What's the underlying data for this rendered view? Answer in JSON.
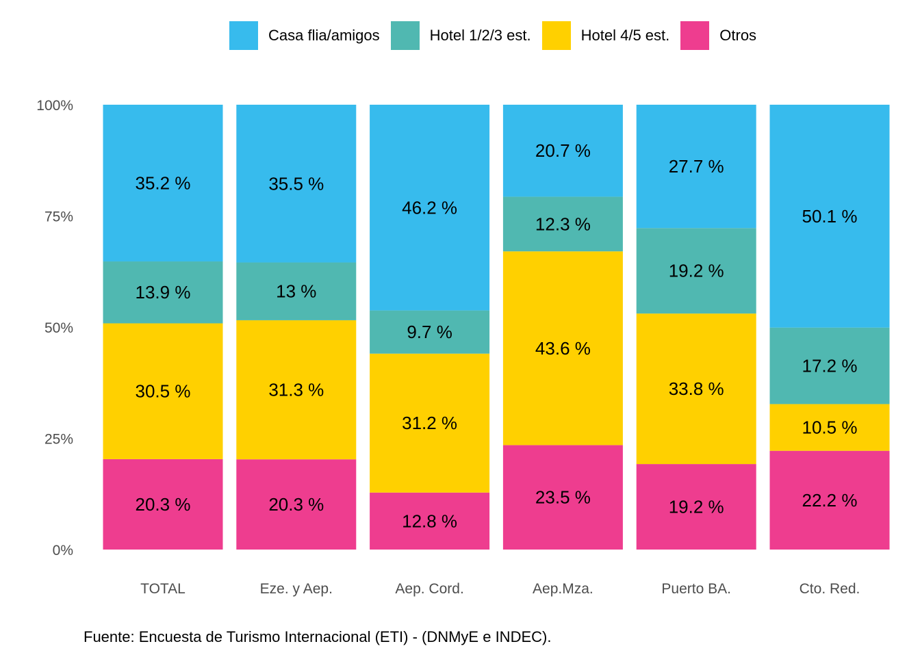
{
  "chart_data": {
    "type": "bar",
    "stacked": true,
    "normalized": true,
    "categories": [
      "TOTAL",
      "Eze. y Aep.",
      "Aep. Cord.",
      "Aep.Mza.",
      "Puerto BA.",
      "Cto. Red."
    ],
    "series": [
      {
        "name": "Otros",
        "color": "#EE3D8F",
        "values": [
          20.3,
          20.3,
          12.8,
          23.5,
          19.2,
          22.2
        ]
      },
      {
        "name": "Hotel 4/5 est.",
        "color": "#FFD000",
        "values": [
          30.5,
          31.3,
          31.2,
          43.6,
          33.8,
          10.5
        ]
      },
      {
        "name": "Hotel 1/2/3 est.",
        "color": "#50B8B1",
        "values": [
          13.9,
          13,
          9.7,
          12.3,
          19.2,
          17.2
        ]
      },
      {
        "name": "Casa flia/amigos",
        "color": "#37BBED",
        "values": [
          35.2,
          35.5,
          46.2,
          20.7,
          27.7,
          50.1
        ]
      }
    ],
    "legend_order": [
      "Casa flia/amigos",
      "Hotel 1/2/3 est.",
      "Hotel 4/5 est.",
      "Otros"
    ],
    "yticks": [
      "0%",
      "25%",
      "50%",
      "75%",
      "100%"
    ],
    "ylim": [
      0,
      100
    ],
    "legend_position": "top",
    "grid": false
  },
  "source": "Fuente: Encuesta de Turismo Internacional (ETI) - (DNMyE e INDEC)."
}
